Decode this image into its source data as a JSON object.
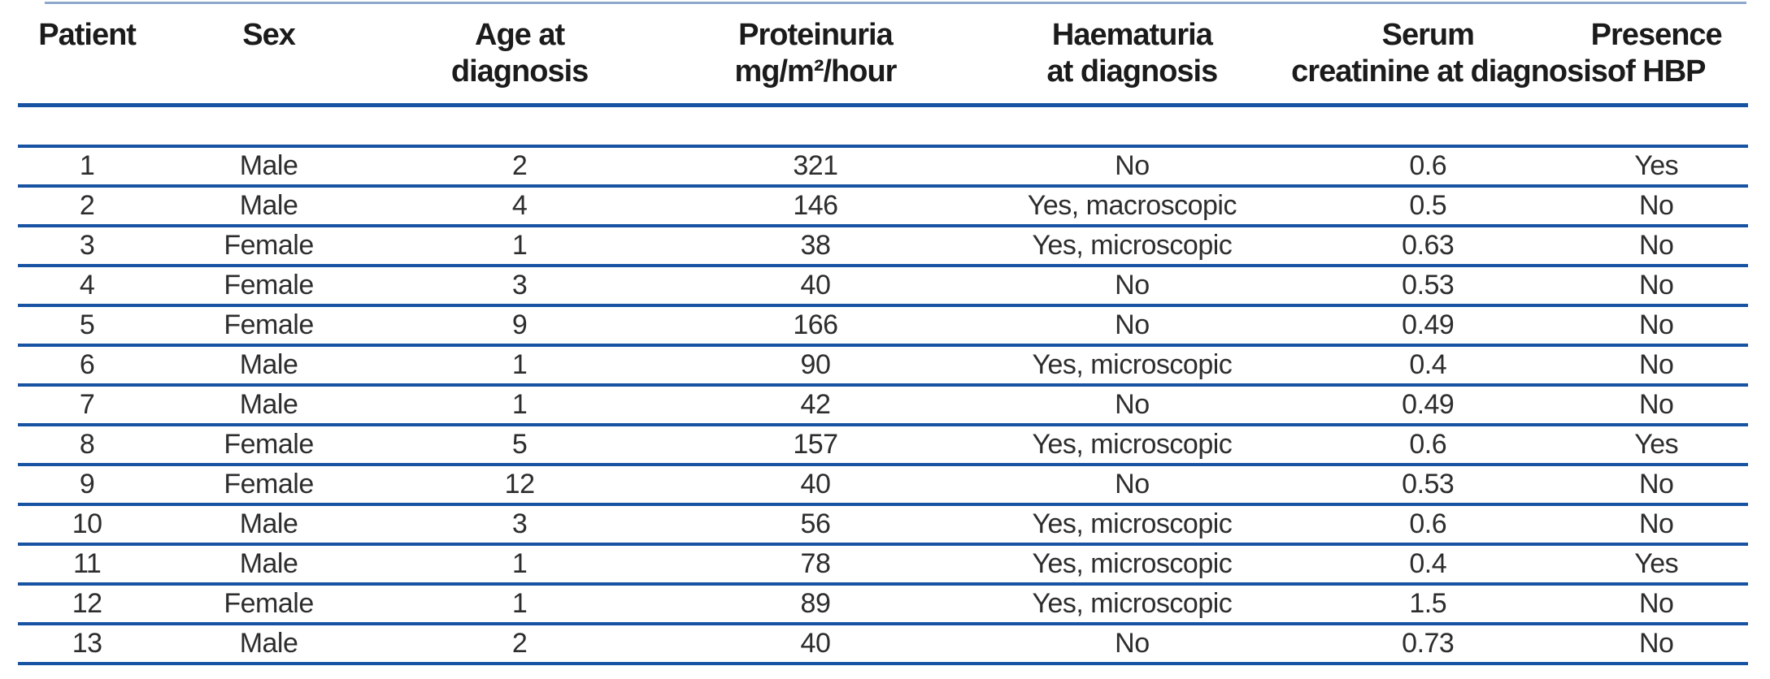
{
  "table": {
    "title": "Patient clinical characteristics table",
    "colors": {
      "rule_blue": "#1753a2",
      "top_rule_light_blue": "#8da8cc",
      "header_text": "#1b1b1b",
      "body_text": "#2d2d2d",
      "background": "#ffffff"
    },
    "columns": [
      {
        "id": "patient",
        "line1": "Patient",
        "line2": ""
      },
      {
        "id": "sex",
        "line1": "Sex",
        "line2": ""
      },
      {
        "id": "age",
        "line1": "Age at",
        "line2": "diagnosis"
      },
      {
        "id": "proteinuria",
        "line1": "Proteinuria",
        "line2": "mg/m²/hour"
      },
      {
        "id": "haematuria",
        "line1": "Haematuria",
        "line2": "at diagnosis"
      },
      {
        "id": "creatinine",
        "line1": "Serum",
        "line2": "creatinine at diagnosis"
      },
      {
        "id": "hbp",
        "line1": "Presence",
        "line2": "of HBP"
      }
    ],
    "rows": [
      [
        "1",
        "Male",
        "2",
        "321",
        "No",
        "0.6",
        "Yes"
      ],
      [
        "2",
        "Male",
        "4",
        "146",
        "Yes, macroscopic",
        "0.5",
        "No"
      ],
      [
        "3",
        "Female",
        "1",
        "38",
        "Yes, microscopic",
        "0.63",
        "No"
      ],
      [
        "4",
        "Female",
        "3",
        "40",
        "No",
        "0.53",
        "No"
      ],
      [
        "5",
        "Female",
        "9",
        "166",
        "No",
        "0.49",
        "No"
      ],
      [
        "6",
        "Male",
        "1",
        "90",
        "Yes, microscopic",
        "0.4",
        "No"
      ],
      [
        "7",
        "Male",
        "1",
        "42",
        "No",
        "0.49",
        "No"
      ],
      [
        "8",
        "Female",
        "5",
        "157",
        "Yes, microscopic",
        "0.6",
        "Yes"
      ],
      [
        "9",
        "Female",
        "12",
        "40",
        "No",
        "0.53",
        "No"
      ],
      [
        "10",
        "Male",
        "3",
        "56",
        "Yes, microscopic",
        "0.6",
        "No"
      ],
      [
        "11",
        "Male",
        "1",
        "78",
        "Yes, microscopic",
        "0.4",
        "Yes"
      ],
      [
        "12",
        "Female",
        "1",
        "89",
        "Yes, microscopic",
        "1.5",
        "No"
      ],
      [
        "13",
        "Male",
        "2",
        "40",
        "No",
        "0.73",
        "No"
      ]
    ]
  }
}
